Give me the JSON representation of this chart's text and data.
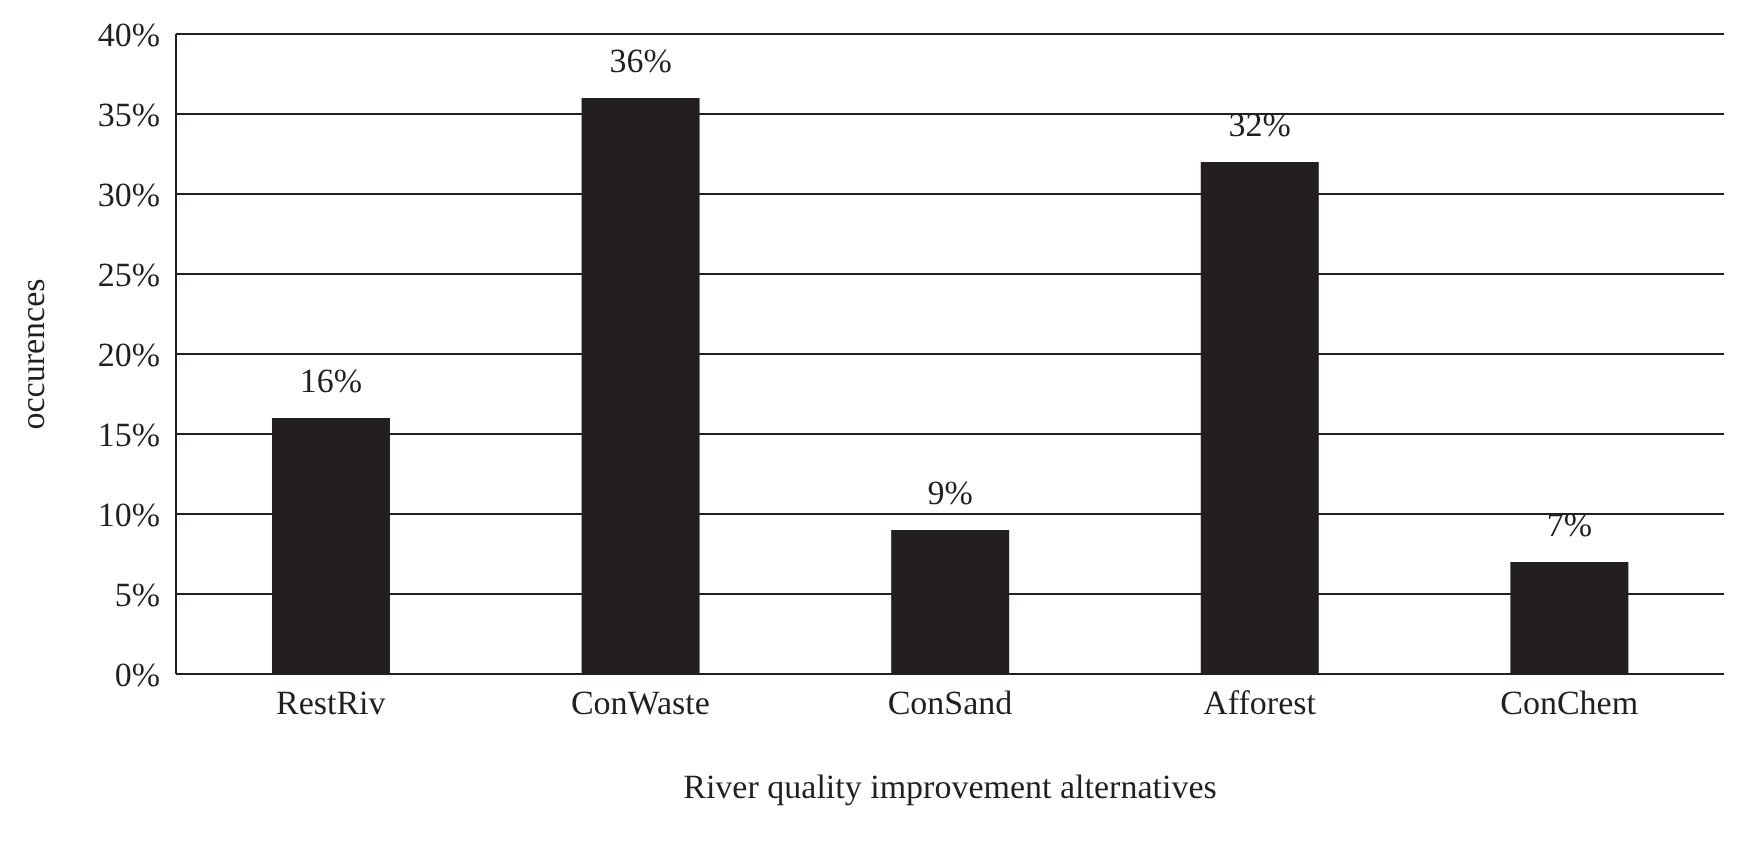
{
  "chart_data": {
    "type": "bar",
    "xlabel": "River quality improvement alternatives",
    "ylabel": "occurences",
    "categories": [
      "RestRiv",
      "ConWaste",
      "ConSand",
      "Afforest",
      "ConChem"
    ],
    "values": [
      16,
      36,
      9,
      32,
      7
    ],
    "color": "#231f20",
    "value_labels": [
      "16%",
      "36%",
      "9%",
      "32%",
      "7%"
    ],
    "ylim": [
      0,
      40
    ],
    "yticks": [
      {
        "value": 0,
        "label": "0%"
      },
      {
        "value": 5,
        "label": "5%"
      },
      {
        "value": 10,
        "label": "10%"
      },
      {
        "value": 15,
        "label": "15%"
      },
      {
        "value": 20,
        "label": "20%"
      },
      {
        "value": 25,
        "label": "25%"
      },
      {
        "value": 30,
        "label": "30%"
      },
      {
        "value": 35,
        "label": "35%"
      },
      {
        "value": 40,
        "label": "40%"
      }
    ],
    "grid": "y",
    "legend": false
  }
}
